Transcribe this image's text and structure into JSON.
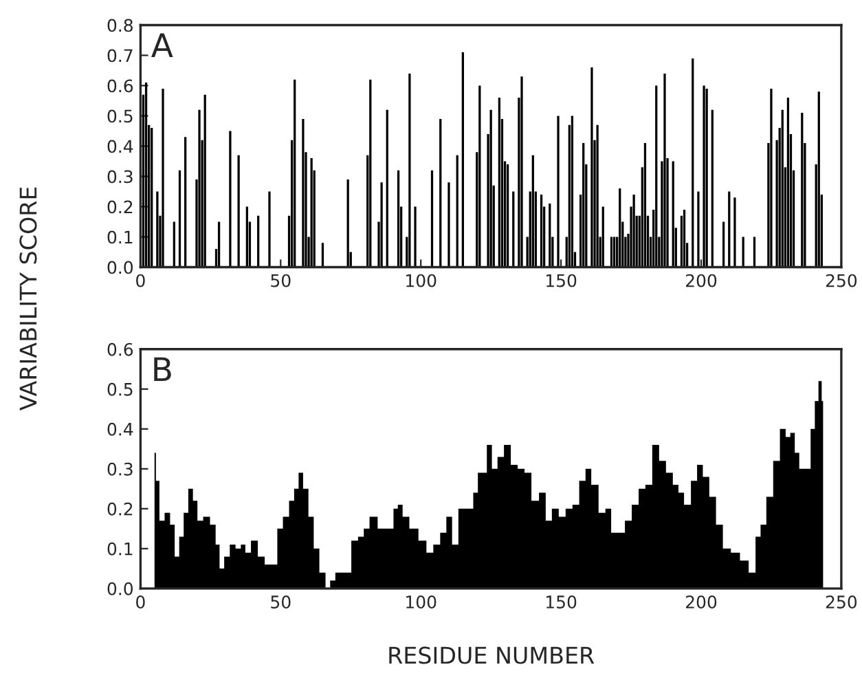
{
  "chart_data": [
    {
      "type": "bar",
      "ylabel": "VARIABILITY SCORE",
      "annotations": [
        "A"
      ],
      "color": "#000000",
      "x": [
        1,
        2,
        3,
        4,
        6,
        7,
        8,
        12,
        14,
        16,
        20,
        21,
        22,
        23,
        27,
        28,
        32,
        35,
        38,
        39,
        42,
        46,
        53,
        54,
        55,
        58,
        59,
        60,
        61,
        62,
        65,
        74,
        75,
        81,
        82,
        85,
        86,
        88,
        92,
        93,
        95,
        96,
        98,
        104,
        107,
        110,
        113,
        115,
        120,
        121,
        124,
        125,
        126,
        128,
        129,
        130,
        131,
        133,
        135,
        136,
        138,
        139,
        140,
        141,
        143,
        144,
        146,
        147,
        149,
        152,
        153,
        154,
        155,
        157,
        158,
        159,
        161,
        162,
        163,
        164,
        165,
        168,
        169,
        170,
        171,
        172,
        173,
        174,
        175,
        176,
        177,
        178,
        179,
        180,
        181,
        182,
        183,
        184,
        185,
        186,
        187,
        188,
        190,
        191,
        193,
        194,
        195,
        197,
        199,
        201,
        202,
        204,
        208,
        210,
        212,
        215,
        219,
        224,
        225,
        227,
        228,
        229,
        230,
        231,
        232,
        233,
        236,
        237,
        241,
        242,
        243
      ],
      "values": [
        0.57,
        0.61,
        0.47,
        0.46,
        0.25,
        0.17,
        0.59,
        0.15,
        0.32,
        0.43,
        0.29,
        0.52,
        0.42,
        0.57,
        0.06,
        0.15,
        0.45,
        0.37,
        0.2,
        0.15,
        0.17,
        0.25,
        0.17,
        0.42,
        0.62,
        0.49,
        0.38,
        0.1,
        0.36,
        0.32,
        0.08,
        0.29,
        0.05,
        0.37,
        0.62,
        0.15,
        0.28,
        0.52,
        0.32,
        0.2,
        0.1,
        0.64,
        0.2,
        0.32,
        0.49,
        0.28,
        0.37,
        0.71,
        0.38,
        0.6,
        0.44,
        0.52,
        0.27,
        0.56,
        0.49,
        0.35,
        0.34,
        0.25,
        0.56,
        0.63,
        0.1,
        0.25,
        0.37,
        0.25,
        0.24,
        0.2,
        0.21,
        0.1,
        0.5,
        0.1,
        0.47,
        0.5,
        0.05,
        0.24,
        0.41,
        0.34,
        0.66,
        0.42,
        0.47,
        0.1,
        0.2,
        0.1,
        0.1,
        0.1,
        0.26,
        0.15,
        0.1,
        0.11,
        0.2,
        0.24,
        0.17,
        0.17,
        0.33,
        0.41,
        0.17,
        0.1,
        0.19,
        0.6,
        0.1,
        0.35,
        0.64,
        0.36,
        0.35,
        0.13,
        0.17,
        0.19,
        0.08,
        0.69,
        0.25,
        0.6,
        0.59,
        0.52,
        0.15,
        0.25,
        0.23,
        0.1,
        0.1,
        0.41,
        0.59,
        0.42,
        0.46,
        0.52,
        0.33,
        0.56,
        0.44,
        0.32,
        0.51,
        0.41,
        0.34,
        0.58,
        0.24
      ],
      "xlim": [
        0,
        250
      ],
      "xticks": [
        0,
        50,
        100,
        150,
        200,
        250
      ],
      "ylim": [
        0,
        0.8
      ],
      "yticks": [
        {
          "value": 0,
          "label": "0.0"
        },
        {
          "value": 0.1,
          "label": "0.1"
        },
        {
          "value": 0.2,
          "label": "0.2"
        },
        {
          "value": 0.3,
          "label": "0.3"
        },
        {
          "value": 0.4,
          "label": "0.4"
        },
        {
          "value": 0.5,
          "label": "0.5"
        },
        {
          "value": 0.6,
          "label": "0.6"
        },
        {
          "value": 0.7,
          "label": "0.7"
        },
        {
          "value": 0.8,
          "label": "0.8"
        }
      ]
    },
    {
      "type": "area",
      "xlabel": "RESIDUE NUMBER",
      "annotations": [
        "B"
      ],
      "color": "#000000",
      "x": [
        5,
        6,
        7.5,
        9.7,
        11.4,
        13,
        14.6,
        16.2,
        17.9,
        19.5,
        21.1,
        23.6,
        26,
        27.6,
        28.8,
        30.9,
        32.8,
        35,
        36.6,
        38.2,
        40.6,
        43.1,
        45.5,
        48,
        49.6,
        52,
        54,
        55.6,
        57.2,
        58.8,
        61,
        62.6,
        65,
        67,
        68.3,
        70.7,
        74,
        76.4,
        78.8,
        80.5,
        82.9,
        86.3,
        89.6,
        90.9,
        92.7,
        94.3,
        97.5,
        100.8,
        103.2,
        105.7,
        108.1,
        110.1,
        112.2,
        114.6,
        117.9,
        119.5,
        121.2,
        122.7,
        124.4,
        126.3,
        128.4,
        130.9,
        133.3,
        135.8,
        138.2,
        140.7,
        143.6,
        145.5,
        148,
        150.4,
        152.9,
        155.3,
        157.7,
        159.8,
        161.8,
        165,
        166.7,
        169.1,
        171.6,
        174,
        176.5,
        178.9,
        181.3,
        183.8,
        186.2,
        188.7,
        191.1,
        192.7,
        195.1,
        197.6,
        199.5,
        201.7,
        204.1,
        206.5,
        209,
        212.2,
        215.5,
        218.4,
        220.4,
        222,
        224.5,
        226.9,
        229.3,
        231,
        232.6,
        234.2,
        235.8,
        238.2,
        239.9,
        241.2,
        242.5,
        243.5
      ],
      "values": [
        0.34,
        0.27,
        0.17,
        0.19,
        0.16,
        0.08,
        0.13,
        0.19,
        0.25,
        0.22,
        0.17,
        0.18,
        0.16,
        0.11,
        0.05,
        0.08,
        0.11,
        0.1,
        0.11,
        0.09,
        0.12,
        0.08,
        0.06,
        0.06,
        0.15,
        0.18,
        0.22,
        0.25,
        0.29,
        0.25,
        0.18,
        0.1,
        0.04,
        0.0,
        0.02,
        0.04,
        0.04,
        0.12,
        0.13,
        0.15,
        0.18,
        0.15,
        0.15,
        0.2,
        0.21,
        0.18,
        0.15,
        0.12,
        0.09,
        0.11,
        0.14,
        0.18,
        0.11,
        0.2,
        0.2,
        0.24,
        0.29,
        0.29,
        0.36,
        0.3,
        0.33,
        0.36,
        0.31,
        0.3,
        0.29,
        0.22,
        0.24,
        0.17,
        0.2,
        0.18,
        0.2,
        0.21,
        0.27,
        0.3,
        0.26,
        0.19,
        0.2,
        0.14,
        0.14,
        0.17,
        0.21,
        0.25,
        0.26,
        0.36,
        0.32,
        0.29,
        0.26,
        0.24,
        0.21,
        0.27,
        0.31,
        0.28,
        0.23,
        0.16,
        0.1,
        0.09,
        0.07,
        0.04,
        0.13,
        0.16,
        0.23,
        0.32,
        0.4,
        0.38,
        0.39,
        0.34,
        0.3,
        0.3,
        0.4,
        0.47,
        0.52,
        0.47
      ],
      "xlim": [
        0,
        250
      ],
      "xticks": [
        0,
        50,
        100,
        150,
        200,
        250
      ],
      "ylim": [
        0,
        0.6
      ],
      "yticks": [
        {
          "value": 0,
          "label": "0.0"
        },
        {
          "value": 0.1,
          "label": "0.1"
        },
        {
          "value": 0.2,
          "label": "0.2"
        },
        {
          "value": 0.3,
          "label": "0.3"
        },
        {
          "value": 0.4,
          "label": "0.4"
        },
        {
          "value": 0.5,
          "label": "0.5"
        },
        {
          "value": 0.6,
          "label": "0.6"
        }
      ]
    }
  ]
}
